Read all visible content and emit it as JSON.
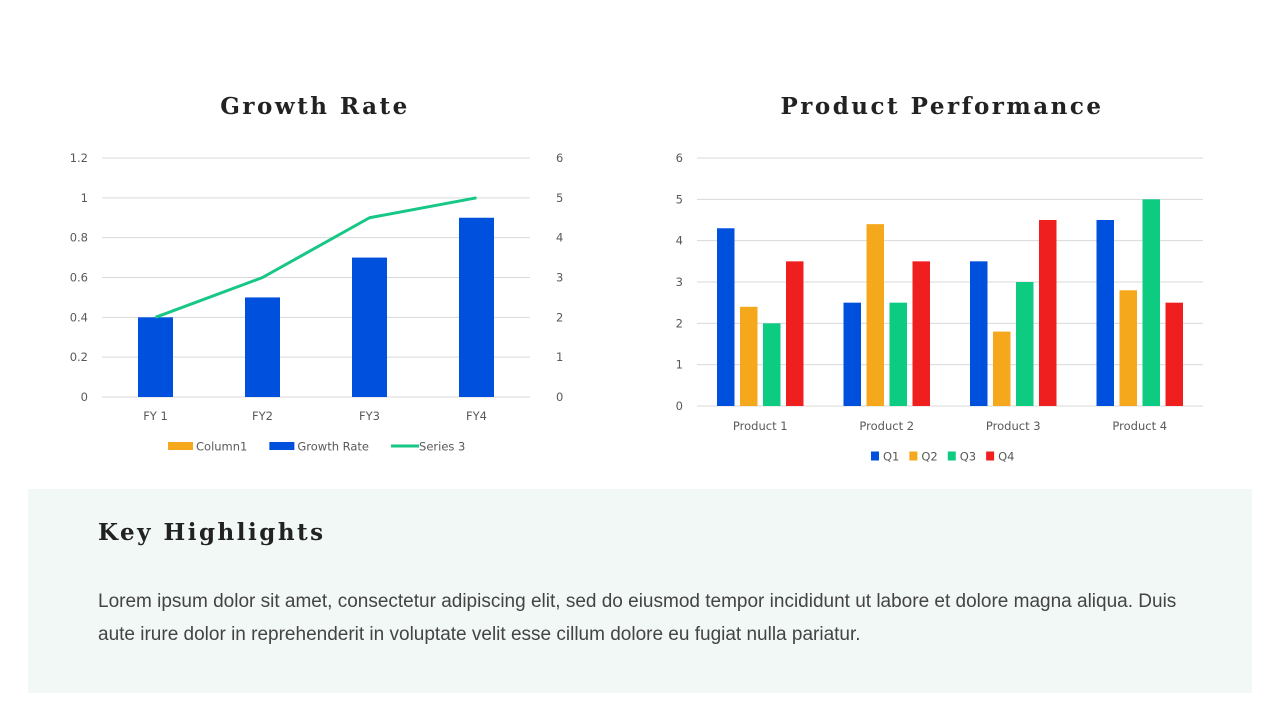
{
  "chart_data": [
    {
      "type": "bar+line",
      "title": "Growth Rate",
      "categories": [
        "FY 1",
        "FY2",
        "FY3",
        "FY4"
      ],
      "series": [
        {
          "name": "Column1",
          "type": "bar",
          "axis": "left",
          "values": [
            null,
            null,
            null,
            null
          ],
          "color": "#f5a81c"
        },
        {
          "name": "Growth Rate",
          "type": "bar",
          "axis": "left",
          "values": [
            0.4,
            0.5,
            0.7,
            0.9
          ],
          "color": "#0050de"
        },
        {
          "name": "Series 3",
          "type": "line",
          "axis": "right",
          "values": [
            2,
            3,
            4.5,
            5
          ],
          "color": "#17c785"
        }
      ],
      "ylim": [
        0,
        1.2
      ],
      "yticks": [
        "0",
        "0.2",
        "0.4",
        "0.6",
        "0.8",
        "1",
        "1.2"
      ],
      "y2lim": [
        0,
        6
      ],
      "y2ticks": [
        "0",
        "1",
        "2",
        "3",
        "4",
        "5",
        "6"
      ],
      "grid": true,
      "legend": "bottom"
    },
    {
      "type": "bar",
      "title": "Product Performance",
      "categories": [
        "Product 1",
        "Product 2",
        "Product 3",
        "Product 4"
      ],
      "series": [
        {
          "name": "Q1",
          "values": [
            4.3,
            2.5,
            3.5,
            4.5
          ],
          "color": "#0050de"
        },
        {
          "name": "Q2",
          "values": [
            2.4,
            4.4,
            1.8,
            2.8
          ],
          "color": "#f5a81c"
        },
        {
          "name": "Q3",
          "values": [
            2,
            2.5,
            3,
            5
          ],
          "color": "#0ecb82"
        },
        {
          "name": "Q4",
          "values": [
            3.5,
            3.5,
            4.5,
            2.5
          ],
          "color": "#f01f1f"
        }
      ],
      "ylim": [
        0,
        6
      ],
      "yticks": [
        "0",
        "1",
        "2",
        "3",
        "4",
        "5",
        "6"
      ],
      "grid": true,
      "legend": "bottom"
    }
  ],
  "highlights": {
    "title": "Key Highlights",
    "text": "Lorem ipsum dolor sit amet, consectetur adipiscing elit, sed do eiusmod tempor incididunt ut labore et dolore magna aliqua. Duis aute irure dolor in reprehenderit in voluptate velit esse cillum dolore eu fugiat nulla pariatur."
  }
}
